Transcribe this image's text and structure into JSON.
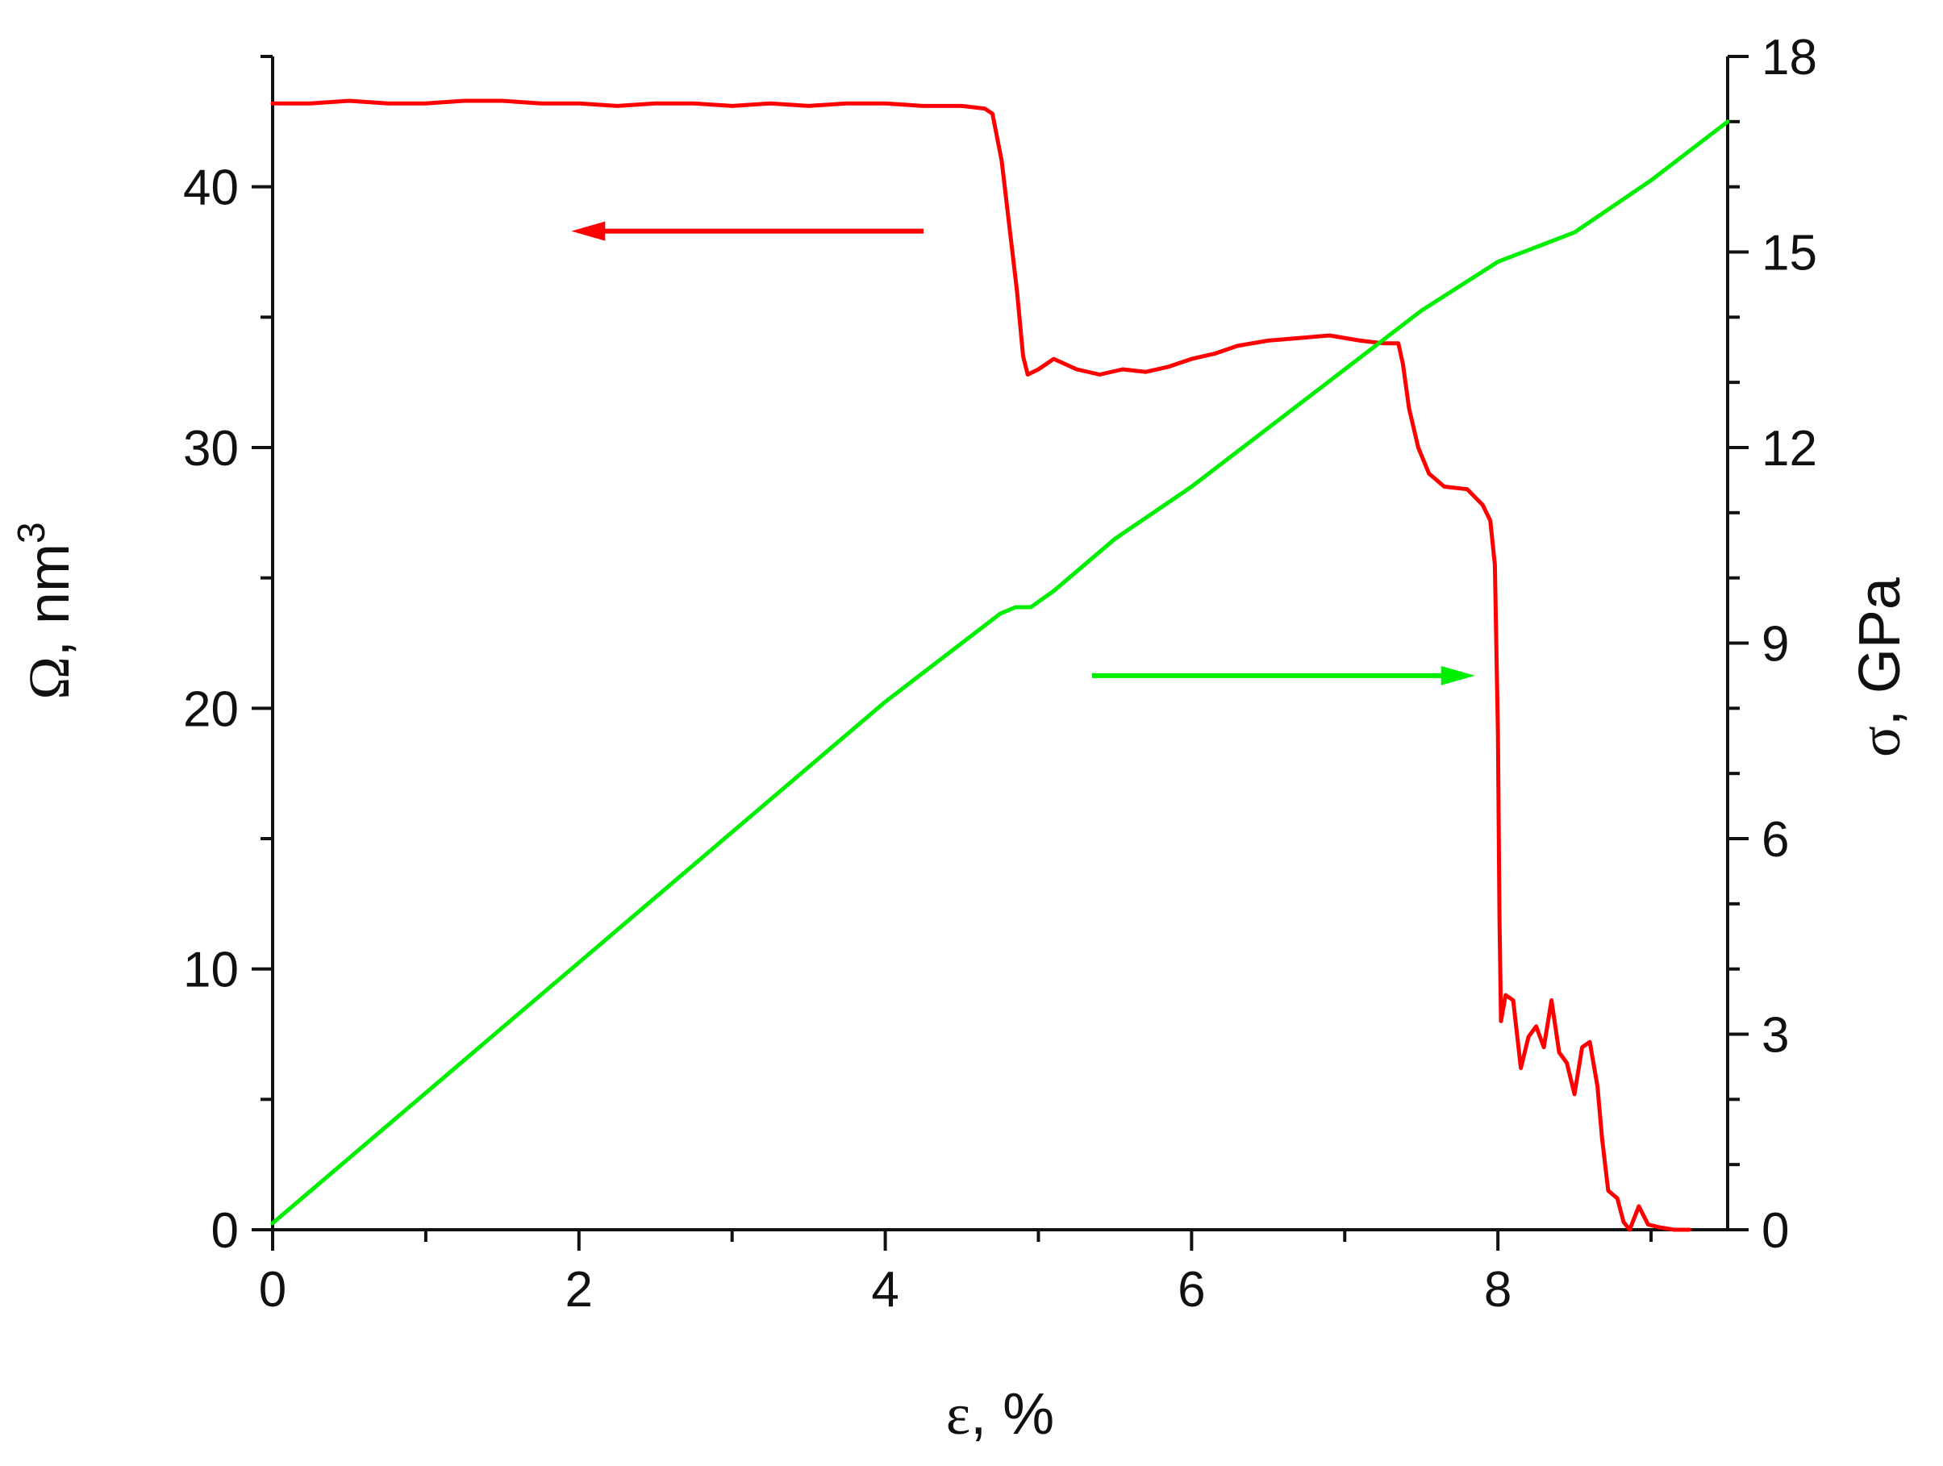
{
  "chart_data": {
    "type": "line",
    "xlabel": {
      "symbol": "ε",
      "unit": ", %"
    },
    "ylabel_left": {
      "symbol": "Ω",
      "unit": ", nm",
      "sup": "3"
    },
    "ylabel_right": {
      "symbol": "σ",
      "unit": ", GPa"
    },
    "x_range": [
      0,
      9.5
    ],
    "y_left_range": [
      0,
      45
    ],
    "y_right_range": [
      0,
      18
    ],
    "x_ticks": [
      0,
      2,
      4,
      6,
      8
    ],
    "x_tick_labels": [
      "0",
      "2",
      "4",
      "6",
      "8"
    ],
    "y_left_ticks": [
      0,
      10,
      20,
      30,
      40
    ],
    "y_left_tick_labels": [
      "0",
      "10",
      "20",
      "30",
      "40"
    ],
    "y_right_ticks": [
      0,
      3,
      6,
      9,
      12,
      15,
      18
    ],
    "y_right_tick_labels": [
      "0",
      "3",
      "6",
      "9",
      "12",
      "15",
      "18"
    ],
    "grid": false,
    "series": [
      {
        "axis": "left",
        "color": "#ff0000",
        "points": [
          [
            0.0,
            43.2
          ],
          [
            0.25,
            43.2
          ],
          [
            0.5,
            43.3
          ],
          [
            0.75,
            43.2
          ],
          [
            1.0,
            43.2
          ],
          [
            1.25,
            43.3
          ],
          [
            1.5,
            43.3
          ],
          [
            1.75,
            43.2
          ],
          [
            2.0,
            43.2
          ],
          [
            2.25,
            43.1
          ],
          [
            2.5,
            43.2
          ],
          [
            2.75,
            43.2
          ],
          [
            3.0,
            43.1
          ],
          [
            3.25,
            43.2
          ],
          [
            3.5,
            43.1
          ],
          [
            3.75,
            43.2
          ],
          [
            4.0,
            43.2
          ],
          [
            4.25,
            43.1
          ],
          [
            4.5,
            43.1
          ],
          [
            4.65,
            43.0
          ],
          [
            4.7,
            42.8
          ],
          [
            4.76,
            41.0
          ],
          [
            4.82,
            38.0
          ],
          [
            4.86,
            36.0
          ],
          [
            4.9,
            33.5
          ],
          [
            4.93,
            32.8
          ],
          [
            5.0,
            33.0
          ],
          [
            5.1,
            33.4
          ],
          [
            5.25,
            33.0
          ],
          [
            5.4,
            32.8
          ],
          [
            5.55,
            33.0
          ],
          [
            5.7,
            32.9
          ],
          [
            5.85,
            33.1
          ],
          [
            6.0,
            33.4
          ],
          [
            6.15,
            33.6
          ],
          [
            6.3,
            33.9
          ],
          [
            6.5,
            34.1
          ],
          [
            6.7,
            34.2
          ],
          [
            6.9,
            34.3
          ],
          [
            7.1,
            34.1
          ],
          [
            7.25,
            34.0
          ],
          [
            7.35,
            34.0
          ],
          [
            7.38,
            33.2
          ],
          [
            7.42,
            31.5
          ],
          [
            7.48,
            30.0
          ],
          [
            7.55,
            29.0
          ],
          [
            7.65,
            28.5
          ],
          [
            7.8,
            28.4
          ],
          [
            7.9,
            27.8
          ],
          [
            7.95,
            27.2
          ],
          [
            7.98,
            25.5
          ],
          [
            8.0,
            19.0
          ],
          [
            8.01,
            12.0
          ],
          [
            8.02,
            8.0
          ],
          [
            8.05,
            9.0
          ],
          [
            8.1,
            8.8
          ],
          [
            8.15,
            6.2
          ],
          [
            8.2,
            7.4
          ],
          [
            8.25,
            7.8
          ],
          [
            8.3,
            7.0
          ],
          [
            8.35,
            8.8
          ],
          [
            8.4,
            6.8
          ],
          [
            8.45,
            6.4
          ],
          [
            8.5,
            5.2
          ],
          [
            8.55,
            7.0
          ],
          [
            8.6,
            7.2
          ],
          [
            8.65,
            5.5
          ],
          [
            8.68,
            3.5
          ],
          [
            8.72,
            1.5
          ],
          [
            8.78,
            1.2
          ],
          [
            8.82,
            0.3
          ],
          [
            8.86,
            0.0
          ],
          [
            8.92,
            0.9
          ],
          [
            8.98,
            0.2
          ],
          [
            9.05,
            0.1
          ],
          [
            9.15,
            0.0
          ],
          [
            9.25,
            0.0
          ]
        ]
      },
      {
        "axis": "right",
        "color": "#00ee00",
        "points": [
          [
            0.0,
            0.1
          ],
          [
            0.5,
            1.1
          ],
          [
            1.0,
            2.1
          ],
          [
            1.5,
            3.1
          ],
          [
            2.0,
            4.1
          ],
          [
            2.5,
            5.1
          ],
          [
            3.0,
            6.1
          ],
          [
            3.5,
            7.1
          ],
          [
            4.0,
            8.1
          ],
          [
            4.5,
            9.0
          ],
          [
            4.75,
            9.45
          ],
          [
            4.85,
            9.55
          ],
          [
            4.95,
            9.55
          ],
          [
            5.1,
            9.8
          ],
          [
            5.5,
            10.6
          ],
          [
            6.0,
            11.4
          ],
          [
            6.5,
            12.3
          ],
          [
            7.0,
            13.2
          ],
          [
            7.5,
            14.1
          ],
          [
            8.0,
            14.85
          ],
          [
            8.5,
            15.3
          ],
          [
            9.0,
            16.1
          ],
          [
            9.5,
            17.0
          ]
        ]
      }
    ],
    "annotations": [
      {
        "type": "arrow",
        "points_to": "left",
        "color": "#ff0000",
        "from": [
          4.25,
          38.3
        ],
        "to": [
          1.95,
          38.3
        ]
      },
      {
        "type": "arrow",
        "points_to": "right",
        "color": "#00ee00",
        "from": [
          5.35,
          8.5
        ],
        "to": [
          7.85,
          8.5
        ]
      }
    ]
  }
}
